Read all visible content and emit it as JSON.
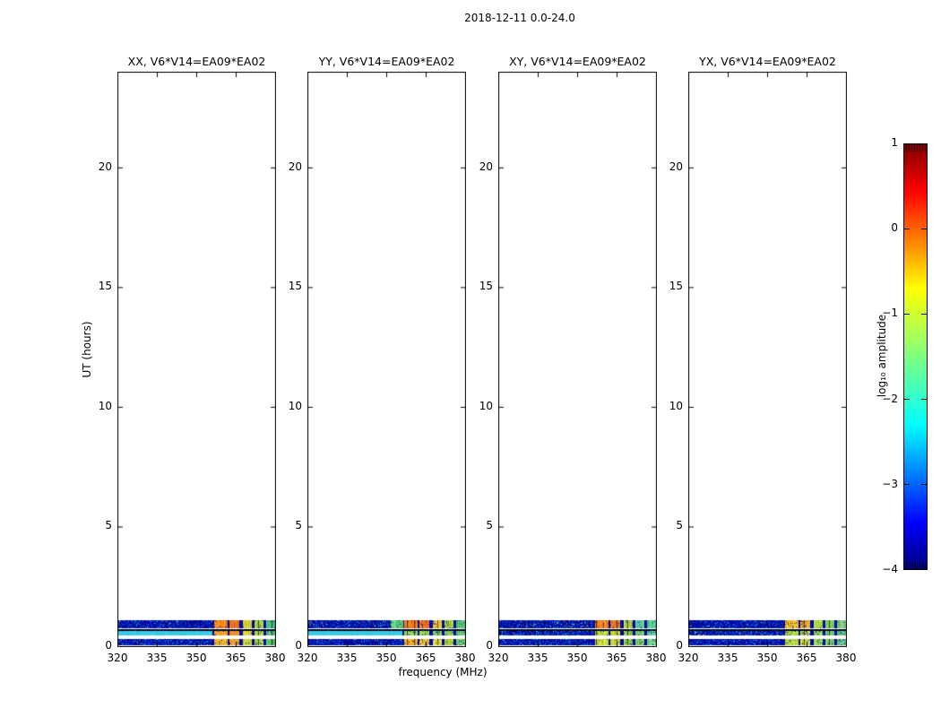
{
  "suptitle": "2018-12-11 0.0-24.0",
  "axes": {
    "x_label": "frequency (MHz)",
    "y_label": "UT (hours)"
  },
  "colorbar": {
    "label": "log10 amplitude",
    "label_display": "log₁₀ amplitude"
  },
  "chart_data": {
    "type": "heatmap",
    "title": "2018-12-11 0.0-24.0",
    "xlabel": "frequency (MHz)",
    "ylabel": "UT (hours)",
    "xlim": [
      320,
      380
    ],
    "ylim": [
      0,
      24
    ],
    "x_ticks": [
      320,
      335,
      350,
      365,
      380
    ],
    "y_ticks": [
      0,
      5,
      10,
      15,
      20
    ],
    "grid": false,
    "colorbar": {
      "label": "log10 amplitude",
      "min": -4,
      "max": 1,
      "ticks": [
        1,
        0,
        -1,
        -2,
        -3,
        -4
      ],
      "colormap": "jet"
    },
    "description": "Dynamic spectra of baseline V6*V14=EA09*EA02 for four polarization products; data present only between UT 0 and ~1.1 hours as three horizontal bands (blue noise floor with strong RFI blocks from ~356.5-380 MHz), blank elsewhere",
    "rfi_blocks_mhz": [
      [
        356.5,
        361.8
      ],
      [
        362.6,
        366.3
      ],
      [
        367.4,
        371.0
      ],
      [
        372.1,
        375.3
      ],
      [
        376.4,
        380.0
      ]
    ],
    "bands_ut": [
      {
        "name": "band1",
        "y0": 0.79,
        "y1": 1.12,
        "style": "speckle"
      },
      {
        "name": "darkline",
        "y0": 0.69,
        "y1": 0.76,
        "style": "dark"
      },
      {
        "name": "band2",
        "y0": 0.47,
        "y1": 0.66,
        "style": "smooth"
      },
      {
        "name": "band3",
        "y0": 0.07,
        "y1": 0.34,
        "style": "speckle"
      }
    ],
    "panels": [
      {
        "label": "XX",
        "title": "XX, V6*V14=EA09*EA02",
        "band1_blocks": [
          "#f08418",
          "#e87420",
          "#d2cc32",
          "#9ed042",
          "#4cc07c"
        ],
        "band2_base": "#3cc8e8",
        "band2_blocks": [
          "#f79a1e",
          "#f08c26",
          "#e0d834",
          "#aad43c",
          "#5ec878"
        ],
        "band3_blocks": [
          "#e8ae26",
          "#e8a026",
          "#c8d434",
          "#9ecc44",
          "#58c068"
        ],
        "pre_block": null
      },
      {
        "label": "YY",
        "title": "YY, V6*V14=EA09*EA02",
        "band1_blocks": [
          "#f07c16",
          "#ee701c",
          "#e8c02e",
          "#a4d040",
          "#54c46e"
        ],
        "band2_base": "#3cc8e8",
        "band2_blocks": [
          "#8ed054",
          "#96d04e",
          "#7ecc62",
          "#86cc5a",
          "#68c87a"
        ],
        "band3_blocks": [
          "#f0a81e",
          "#e8bc2e",
          "#d4d436",
          "#b2d240",
          "#6cc862"
        ],
        "pre_block": {
          "range": [
            351.5,
            356.2
          ],
          "color": "#5ac878"
        }
      },
      {
        "label": "XY",
        "title": "XY, V6*V14=EA09*EA02",
        "band1_blocks": [
          "#f0821a",
          "#e87c20",
          "#b6d04a",
          "#60c8a2",
          "#5ac48c"
        ],
        "band2_base": null,
        "band2_blocks": [
          "#b6d83a",
          "#c6d436",
          "#8acc52",
          "#72c86c",
          "#62c48a"
        ],
        "band3_blocks": [
          "#c2d838",
          "#ced234",
          "#92cc4e",
          "#7ec862",
          "#6ac480"
        ],
        "pre_block": null
      },
      {
        "label": "YX",
        "title": "YX, V6*V14=EA09*EA02",
        "band1_blocks": [
          "#e8c230",
          "#dca830",
          "#a2d048",
          "#7ccc5c",
          "#80c87a"
        ],
        "band2_base": null,
        "band2_blocks": [
          "#a4d442",
          "#b2d03e",
          "#86cc56",
          "#6ec872",
          "#60c482"
        ],
        "band3_blocks": [
          "#b2d43e",
          "#c2d038",
          "#8ecc50",
          "#76c86a",
          "#66c47e"
        ],
        "pre_block": null
      }
    ]
  }
}
